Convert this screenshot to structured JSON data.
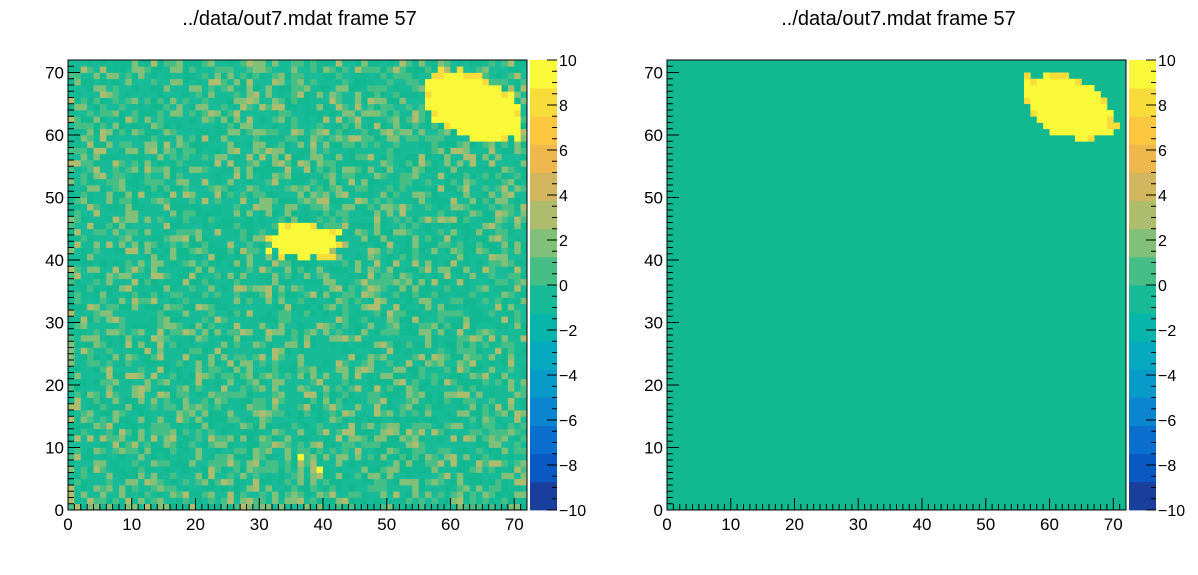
{
  "colors": {
    "zero_bin": "#12b990",
    "palette": [
      "#1a3e9b",
      "#0a58c1",
      "#0b6fd0",
      "#0c85d0",
      "#089ac9",
      "#05aac0",
      "#07b5aa",
      "#18bb98",
      "#46bf86",
      "#81c079",
      "#aebc6e",
      "#d1b65f",
      "#efb84c",
      "#fdc840",
      "#f8dd3a",
      "#f9f93a"
    ],
    "spot": "#f8ec3c"
  },
  "chart_data": [
    {
      "type": "heatmap",
      "title": "../data/out7.mdat frame 57",
      "xlabel": "",
      "ylabel": "",
      "xlim": [
        0,
        72
      ],
      "ylim": [
        0,
        72
      ],
      "zlim": [
        -10,
        10
      ],
      "x_ticks": [
        "0",
        "10",
        "20",
        "30",
        "40",
        "50",
        "60",
        "70"
      ],
      "y_ticks": [
        "0",
        "10",
        "20",
        "30",
        "40",
        "50",
        "60",
        "70"
      ],
      "z_ticks": [
        "10",
        "8",
        "6",
        "4",
        "2",
        "0",
        "−2",
        "−4",
        "−6",
        "−8",
        "−10"
      ],
      "bins": [
        72,
        72
      ],
      "background": "noise",
      "noise_range": [
        -1,
        3
      ],
      "features": [
        {
          "shape": "ellipse",
          "cx": 63.5,
          "cy": 64.5,
          "rx": 8.5,
          "ry": 5,
          "angle_deg": -27,
          "value": 10
        },
        {
          "shape": "blob",
          "cx": 37,
          "cy": 43,
          "rx": 6,
          "ry": 3,
          "angle_deg": 0,
          "value": 10
        },
        {
          "shape": "point",
          "x": 36,
          "y": 8,
          "value": 10
        },
        {
          "shape": "point",
          "x": 39,
          "y": 6,
          "value": 10
        }
      ]
    },
    {
      "type": "heatmap",
      "title": "../data/out7.mdat frame 57",
      "xlabel": "",
      "ylabel": "",
      "xlim": [
        0,
        72
      ],
      "ylim": [
        0,
        72
      ],
      "zlim": [
        -10,
        10
      ],
      "x_ticks": [
        "0",
        "10",
        "20",
        "30",
        "40",
        "50",
        "60",
        "70"
      ],
      "y_ticks": [
        "0",
        "10",
        "20",
        "30",
        "40",
        "50",
        "60",
        "70"
      ],
      "z_ticks": [
        "10",
        "8",
        "6",
        "4",
        "2",
        "0",
        "−2",
        "−4",
        "−6",
        "−8",
        "−10"
      ],
      "bins": [
        72,
        72
      ],
      "background": "flat",
      "background_value": 0,
      "features": [
        {
          "shape": "ellipse",
          "cx": 63,
          "cy": 64.5,
          "rx": 8,
          "ry": 4.5,
          "angle_deg": -27,
          "value": 10
        }
      ]
    }
  ]
}
